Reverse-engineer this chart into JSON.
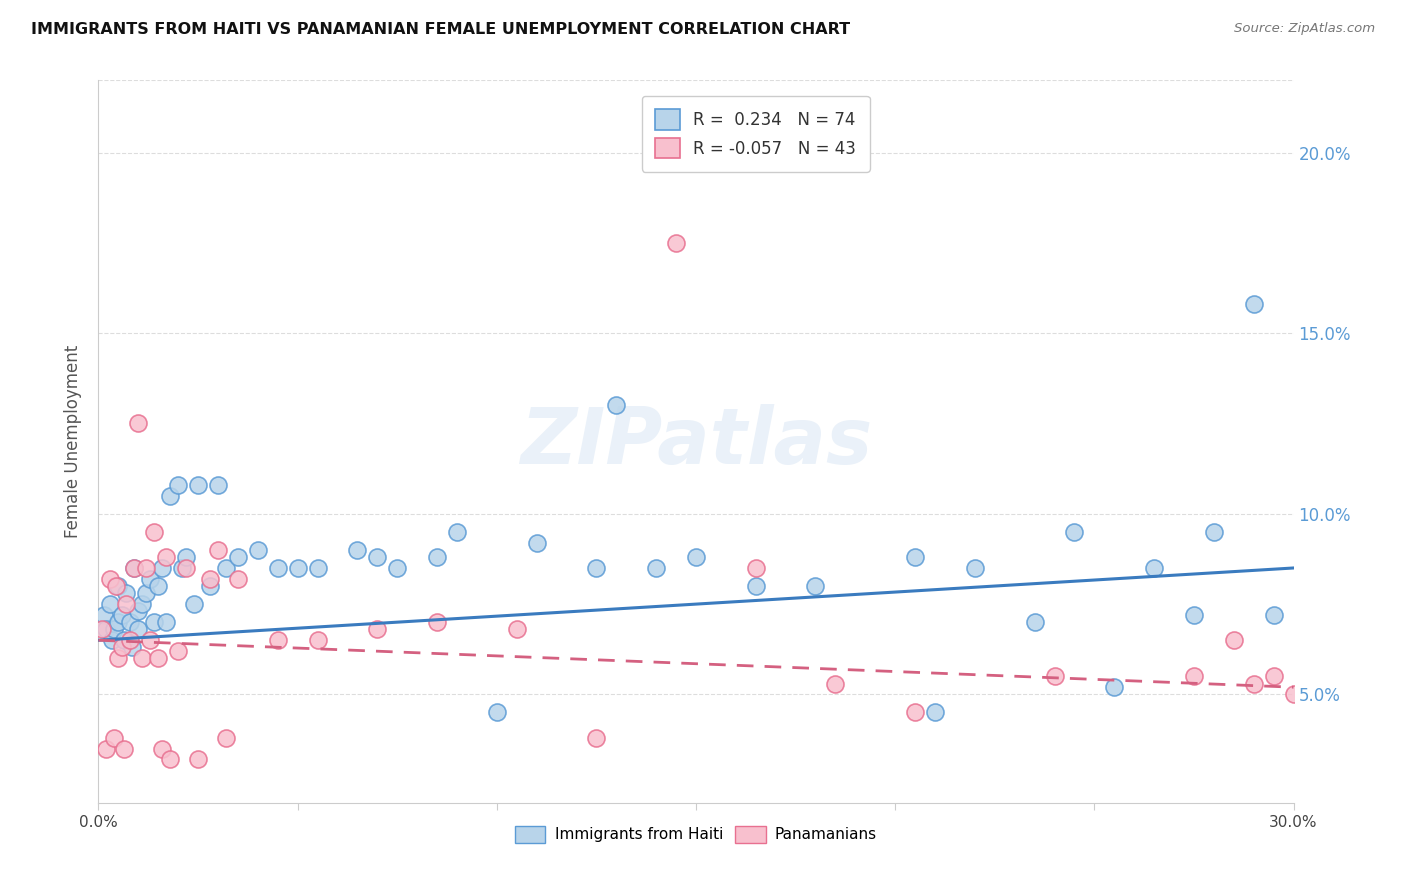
{
  "title": "IMMIGRANTS FROM HAITI VS PANAMANIAN FEMALE UNEMPLOYMENT CORRELATION CHART",
  "source": "Source: ZipAtlas.com",
  "ylabel": "Female Unemployment",
  "xlim": [
    0.0,
    30.0
  ],
  "ylim": [
    2.0,
    22.0
  ],
  "ytick_vals": [
    5.0,
    10.0,
    15.0,
    20.0
  ],
  "xtick_vals": [
    0.0,
    5.0,
    10.0,
    15.0,
    20.0,
    25.0,
    30.0
  ],
  "color_haiti_fill": "#b8d4ea",
  "color_haiti_edge": "#5b9bd5",
  "color_panama_fill": "#f8c0ce",
  "color_panama_edge": "#e87090",
  "color_line_haiti": "#3a7bbf",
  "color_line_panama": "#d46080",
  "color_ytick": "#5b9bd5",
  "haiti_line_start": 6.5,
  "haiti_line_end": 8.5,
  "panama_line_start": 6.5,
  "panama_line_end": 5.2,
  "haiti_scatter_x": [
    0.15,
    0.2,
    0.3,
    0.35,
    0.4,
    0.5,
    0.5,
    0.6,
    0.65,
    0.7,
    0.8,
    0.85,
    0.9,
    1.0,
    1.0,
    1.1,
    1.2,
    1.3,
    1.4,
    1.5,
    1.6,
    1.7,
    1.8,
    2.0,
    2.1,
    2.2,
    2.4,
    2.5,
    2.8,
    3.0,
    3.2,
    3.5,
    4.0,
    4.5,
    5.0,
    5.5,
    6.5,
    7.0,
    7.5,
    8.5,
    9.0,
    10.0,
    11.0,
    12.5,
    13.0,
    14.0,
    15.0,
    16.5,
    18.0,
    20.5,
    21.0,
    22.0,
    23.5,
    24.5,
    25.5,
    26.5,
    27.5,
    28.0,
    29.0,
    29.5
  ],
  "haiti_scatter_y": [
    7.2,
    6.8,
    7.5,
    6.5,
    6.8,
    7.0,
    8.0,
    7.2,
    6.5,
    7.8,
    7.0,
    6.3,
    8.5,
    6.8,
    7.3,
    7.5,
    7.8,
    8.2,
    7.0,
    8.0,
    8.5,
    7.0,
    10.5,
    10.8,
    8.5,
    8.8,
    7.5,
    10.8,
    8.0,
    10.8,
    8.5,
    8.8,
    9.0,
    8.5,
    8.5,
    8.5,
    9.0,
    8.8,
    8.5,
    8.8,
    9.5,
    4.5,
    9.2,
    8.5,
    13.0,
    8.5,
    8.8,
    8.0,
    8.0,
    8.8,
    4.5,
    8.5,
    7.0,
    9.5,
    5.2,
    8.5,
    7.2,
    9.5,
    15.8,
    7.2
  ],
  "panama_scatter_x": [
    0.1,
    0.2,
    0.3,
    0.4,
    0.45,
    0.5,
    0.6,
    0.65,
    0.7,
    0.8,
    0.9,
    1.0,
    1.1,
    1.2,
    1.3,
    1.4,
    1.5,
    1.6,
    1.7,
    1.8,
    2.0,
    2.2,
    2.5,
    2.8,
    3.0,
    3.2,
    3.5,
    4.5,
    5.5,
    7.0,
    8.5,
    10.5,
    12.5,
    14.5,
    16.5,
    18.5,
    20.5,
    24.0,
    27.5,
    28.5,
    29.0,
    29.5,
    30.0
  ],
  "panama_scatter_y": [
    6.8,
    3.5,
    8.2,
    3.8,
    8.0,
    6.0,
    6.3,
    3.5,
    7.5,
    6.5,
    8.5,
    12.5,
    6.0,
    8.5,
    6.5,
    9.5,
    6.0,
    3.5,
    8.8,
    3.2,
    6.2,
    8.5,
    3.2,
    8.2,
    9.0,
    3.8,
    8.2,
    6.5,
    6.5,
    6.8,
    7.0,
    6.8,
    3.8,
    17.5,
    8.5,
    5.3,
    4.5,
    5.5,
    5.5,
    6.5,
    5.3,
    5.5,
    5.0
  ]
}
